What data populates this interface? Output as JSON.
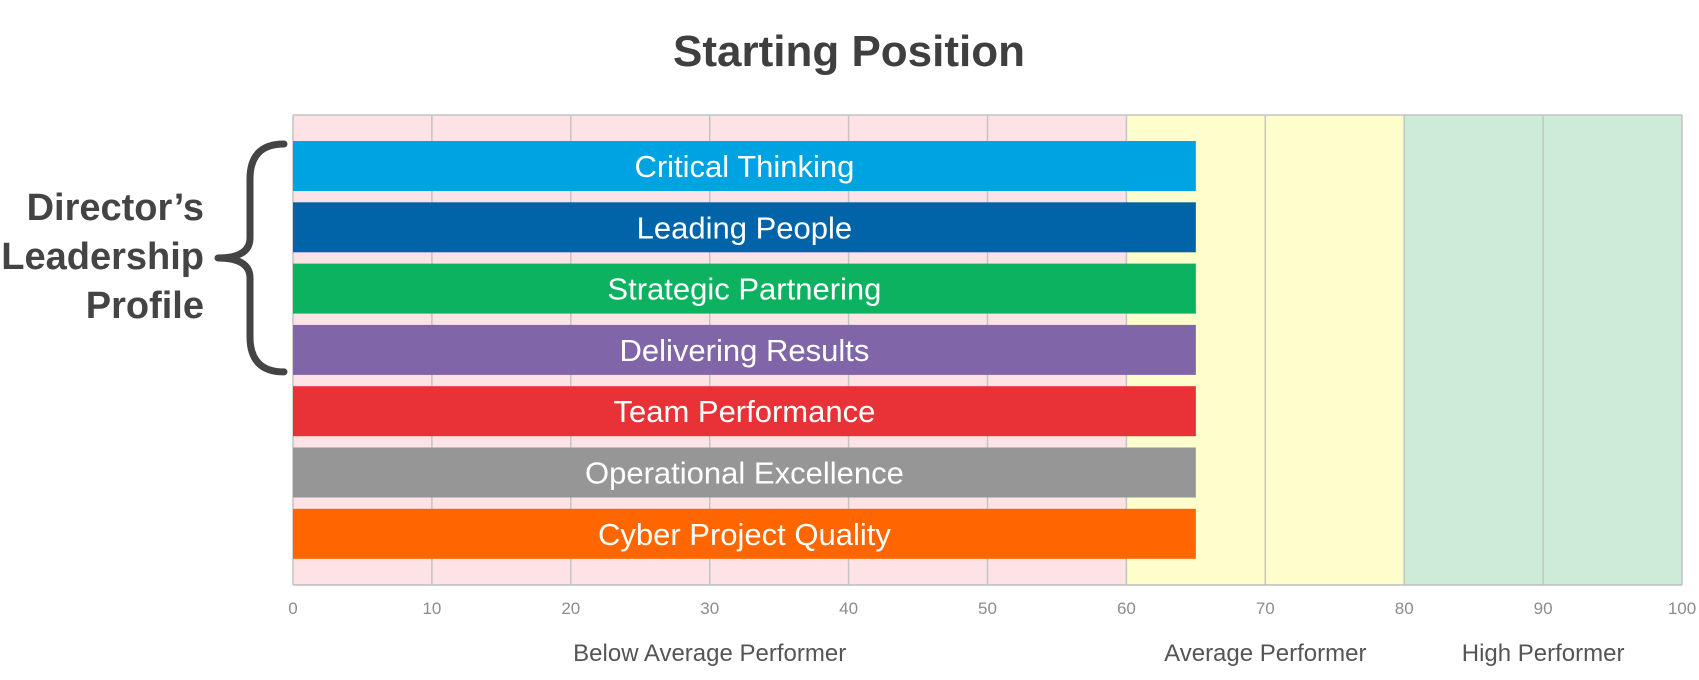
{
  "chart_data": {
    "type": "bar",
    "orientation": "horizontal",
    "title": "Starting Position",
    "side_label": [
      "Director’s",
      "Leadership",
      "Profile"
    ],
    "categories": [
      "Critical Thinking",
      "Leading People",
      "Strategic Partnering",
      "Delivering Results",
      "Team Performance",
      "Operational Excellence",
      "Cyber Project Quality"
    ],
    "values": [
      65,
      65,
      65,
      65,
      65,
      65,
      65
    ],
    "colors": [
      "#00a3e2",
      "#0264a8",
      "#0db260",
      "#8065a8",
      "#e93138",
      "#969696",
      "#ff6600"
    ],
    "bracket_spans": 4,
    "xlim": [
      0,
      100
    ],
    "x_ticks": [
      0,
      10,
      20,
      30,
      40,
      50,
      60,
      70,
      80,
      90,
      100
    ],
    "grid": true,
    "zones": [
      {
        "label": "Below Average Performer",
        "from": 0,
        "to": 60,
        "color": "#fde3e6"
      },
      {
        "label": "Average Performer",
        "from": 60,
        "to": 80,
        "color": "#fefdcc"
      },
      {
        "label": "High Performer",
        "from": 80,
        "to": 100,
        "color": "#ccecd8"
      }
    ]
  }
}
